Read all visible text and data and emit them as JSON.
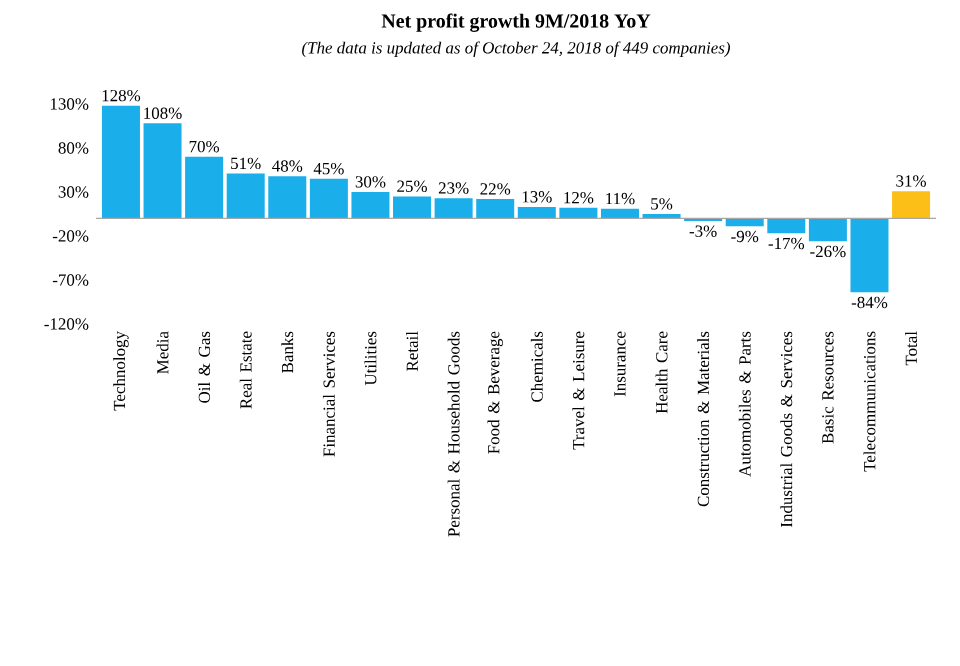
{
  "chart_data": {
    "type": "bar",
    "title": "Net profit growth 9M/2018 YoY",
    "subtitle": "(The data is updated as of October 24, 2018 of 449 companies)",
    "categories": [
      "Technology",
      "Media",
      "Oil & Gas",
      "Real Estate",
      "Banks",
      "Financial Services",
      "Utilities",
      "Retail",
      "Personal & Household Goods",
      "Food & Beverage",
      "Chemicals",
      "Travel & Leisure",
      "Insurance",
      "Health Care",
      "Construction & Materials",
      "Automobiles & Parts",
      "Industrial Goods & Services",
      "Basic Resources",
      "Telecommunications",
      "Total"
    ],
    "values": [
      128,
      108,
      70,
      51,
      48,
      45,
      30,
      25,
      23,
      22,
      13,
      12,
      11,
      5,
      -3,
      -9,
      -17,
      -26,
      -84,
      31
    ],
    "value_labels": [
      "128%",
      "108%",
      "70%",
      "51%",
      "48%",
      "45%",
      "30%",
      "25%",
      "23%",
      "22%",
      "13%",
      "12%",
      "11%",
      "5%",
      "-3%",
      "-9%",
      "-17%",
      "-26%",
      "-84%",
      "31%"
    ],
    "colors": [
      "#1aaeea",
      "#1aaeea",
      "#1aaeea",
      "#1aaeea",
      "#1aaeea",
      "#1aaeea",
      "#1aaeea",
      "#1aaeea",
      "#1aaeea",
      "#1aaeea",
      "#1aaeea",
      "#1aaeea",
      "#1aaeea",
      "#1aaeea",
      "#1aaeea",
      "#1aaeea",
      "#1aaeea",
      "#1aaeea",
      "#1aaeea",
      "#fbbf18"
    ],
    "ylim": [
      -120,
      130
    ],
    "yticks": [
      {
        "value": -120,
        "label": "-120%"
      },
      {
        "value": -70,
        "label": "-70%"
      },
      {
        "value": -20,
        "label": "-20%"
      },
      {
        "value": 30,
        "label": "30%"
      },
      {
        "value": 80,
        "label": "80%"
      },
      {
        "value": 130,
        "label": "130%"
      }
    ]
  }
}
